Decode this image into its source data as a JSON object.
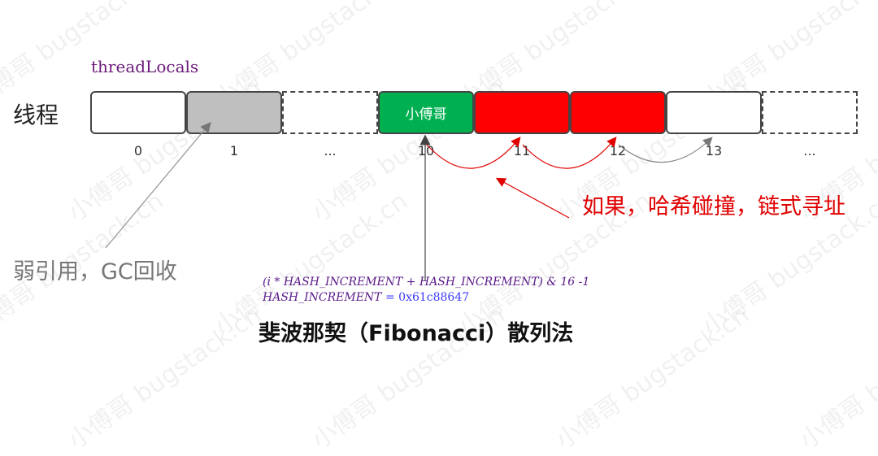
{
  "title": "threadLocals",
  "row_label": "线程",
  "cells": [
    {
      "index": "0",
      "style": "empty",
      "fill": "#ffffff",
      "text": ""
    },
    {
      "index": "1",
      "style": "gc",
      "fill": "#bfbfbf",
      "text": ""
    },
    {
      "index": "...",
      "style": "dashed",
      "fill": "#ffffff",
      "text": ""
    },
    {
      "index": "10",
      "style": "filled",
      "fill": "#00b050",
      "text": "小傅哥"
    },
    {
      "index": "11",
      "style": "filled",
      "fill": "#ff0000",
      "text": ""
    },
    {
      "index": "12",
      "style": "filled",
      "fill": "#ff0000",
      "text": ""
    },
    {
      "index": "13",
      "style": "empty",
      "fill": "#ffffff",
      "text": ""
    },
    {
      "index": "...",
      "style": "dashed",
      "fill": "#ffffff",
      "text": ""
    }
  ],
  "weak_ref_note": "弱引用，GC回收",
  "collision_note": "如果，哈希碰撞，链式寻址",
  "formula": {
    "line1": "(i * HASH_INCREMENT + HASH_INCREMENT) & 16 -1",
    "line2_name": "HASH_INCREMENT",
    "line2_eq": " = ",
    "line2_value": "0x61c88647"
  },
  "caption": "斐波那契（Fibonacci）散列法",
  "watermark": "小傅哥 bugstack.cn",
  "colors": {
    "green": "#00b050",
    "red": "#ff0000",
    "gray": "#bfbfbf",
    "title": "#6a1a7a"
  }
}
